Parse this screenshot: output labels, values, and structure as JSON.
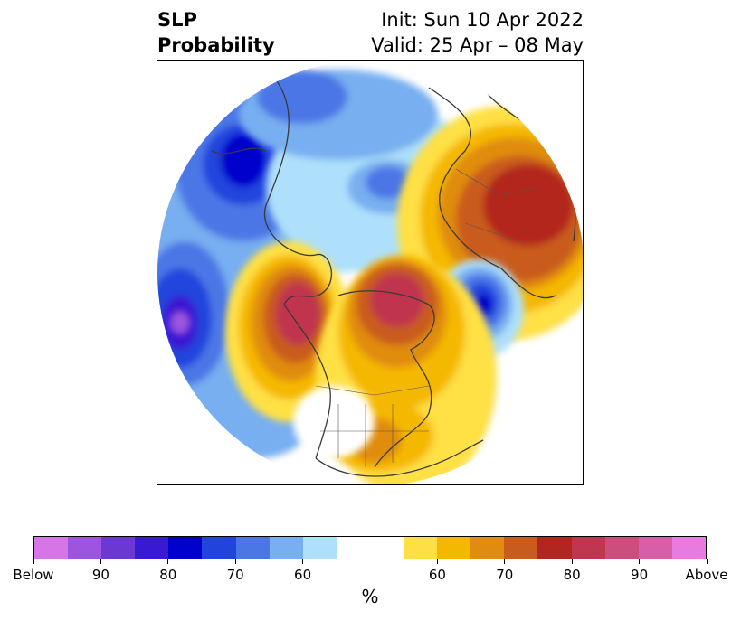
{
  "title": {
    "left_line1": "SLP",
    "left_line2": "Probability",
    "right_line1": "Init: Sun 10 Apr 2022",
    "right_line2": "Valid: 25 Apr – 08 May"
  },
  "colorbar": {
    "colors": [
      "#d676e6",
      "#9d55e0",
      "#6b38d4",
      "#3a19d2",
      "#0000cd",
      "#2244dd",
      "#4b77e6",
      "#77aff0",
      "#aee0fb",
      "#ffffff",
      "#ffffff",
      "#ffe044",
      "#f5b800",
      "#e08c10",
      "#c95b1c",
      "#b3251f",
      "#c0364e",
      "#cc4e7c",
      "#d95ea8",
      "#e87ae0"
    ],
    "tick_labels": [
      "Below",
      "90",
      "80",
      "70",
      "60",
      "60",
      "70",
      "80",
      "90",
      "Above"
    ],
    "unit_label": "%"
  },
  "map": {
    "projection": "north-polar-stereographic",
    "anomaly_palette": {
      "below_strong": "#3a19d2",
      "below_mid": "#2244dd",
      "below_weak": "#77aff0",
      "below_light": "#aee0fb",
      "neutral": "#ffffff",
      "above_light": "#ffe044",
      "above_weak": "#f5b800",
      "above_mid": "#e08c10",
      "above_strong": "#b3251f",
      "above_extreme": "#c0364e"
    }
  }
}
